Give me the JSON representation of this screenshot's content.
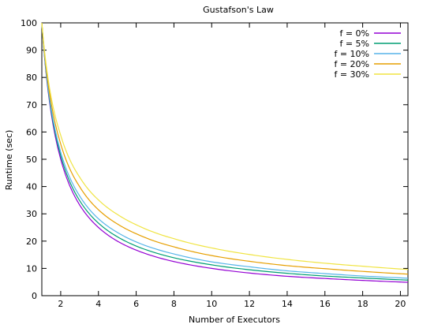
{
  "chart_data": {
    "type": "line",
    "title": "Gustafson's Law",
    "xlabel": "Number of Executors",
    "ylabel": "Runtime (sec)",
    "xlim": [
      1,
      20.4
    ],
    "ylim": [
      0,
      100
    ],
    "xticks": [
      2,
      4,
      6,
      8,
      10,
      12,
      14,
      16,
      18,
      20
    ],
    "yticks": [
      0,
      10,
      20,
      30,
      40,
      50,
      60,
      70,
      80,
      90,
      100
    ],
    "legend_position": "top-right",
    "grid": false,
    "series": [
      {
        "name": "f = 0%",
        "color": "#9400d3",
        "x": [
          1,
          2,
          3,
          4,
          5,
          6,
          8,
          10,
          12,
          14,
          16,
          18,
          20.4
        ],
        "y": [
          100,
          50.0,
          33.3,
          25.0,
          20.0,
          16.7,
          12.5,
          10.0,
          8.3,
          7.1,
          6.3,
          5.6,
          4.9
        ]
      },
      {
        "name": "f = 5%",
        "color": "#009e73",
        "x": [
          1,
          2,
          3,
          4,
          5,
          6,
          8,
          10,
          12,
          14,
          16,
          18,
          20.4
        ],
        "y": [
          100,
          51.3,
          34.9,
          26.6,
          21.6,
          18.2,
          13.9,
          11.3,
          9.5,
          8.2,
          7.2,
          6.5,
          5.7
        ]
      },
      {
        "name": "f = 10%",
        "color": "#56b4e9",
        "x": [
          1,
          2,
          3,
          4,
          5,
          6,
          8,
          10,
          12,
          14,
          16,
          18,
          20.4
        ],
        "y": [
          100,
          52.6,
          36.6,
          28.2,
          23.2,
          19.7,
          15.3,
          12.4,
          10.6,
          9.1,
          8.1,
          7.2,
          6.4
        ]
      },
      {
        "name": "f = 20%",
        "color": "#e69f00",
        "x": [
          1,
          2,
          3,
          4,
          5,
          6,
          8,
          10,
          12,
          14,
          16,
          18,
          20.4
        ],
        "y": [
          100,
          55.6,
          40.0,
          31.5,
          26.3,
          22.7,
          17.9,
          14.7,
          12.6,
          11.0,
          9.9,
          8.9,
          7.9
        ]
      },
      {
        "name": "f = 30%",
        "color": "#f0e442",
        "x": [
          1,
          2,
          3,
          4,
          5,
          6,
          8,
          10,
          12,
          14,
          16,
          18,
          20.4
        ],
        "y": [
          100,
          58.8,
          43.5,
          35.1,
          29.8,
          26.0,
          20.9,
          17.5,
          15.1,
          13.3,
          11.9,
          10.8,
          9.6
        ]
      }
    ]
  }
}
